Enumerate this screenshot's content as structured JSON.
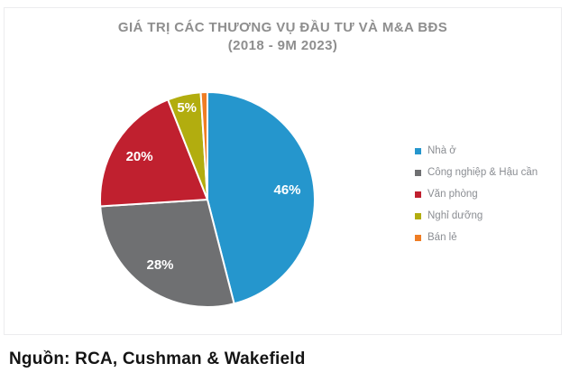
{
  "chart_data": {
    "type": "pie",
    "title": "GIÁ TRỊ CÁC THƯƠNG VỤ ĐẦU TƯ VÀ M&A BĐS",
    "subtitle": "(2018 - 9M 2023)",
    "categories": [
      "Nhà ở",
      "Công nghiệp & Hậu cần",
      "Văn phòng",
      "Nghỉ dưỡng",
      "Bán lẻ"
    ],
    "values": [
      46,
      28,
      20,
      5,
      1
    ],
    "labels": [
      "46%",
      "28%",
      "20%",
      "5%",
      ""
    ],
    "colors": [
      "#2596CD",
      "#6F7072",
      "#C0202F",
      "#B2AD0F",
      "#EF7D24"
    ],
    "legend_position": "right",
    "start_angle_deg": 0,
    "direction": "clockwise",
    "title_color": "#8e8e8e",
    "label_color": "#ffffff"
  },
  "source": {
    "text": "Nguồn: RCA, Cushman & Wakefield"
  }
}
